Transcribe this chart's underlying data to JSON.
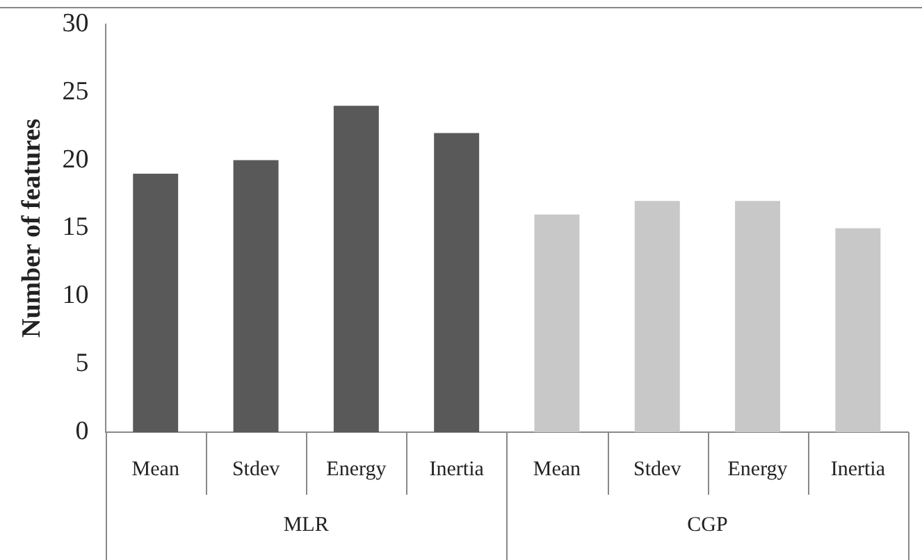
{
  "chart_data": {
    "type": "bar",
    "ylabel": "Number of features",
    "categories": [
      "Mean",
      "Stdev",
      "Energy",
      "Inertia",
      "Mean",
      "Stdev",
      "Energy",
      "Inertia"
    ],
    "values": [
      19,
      20,
      24,
      22,
      16,
      17,
      17,
      15
    ],
    "colors": [
      "#595959",
      "#595959",
      "#595959",
      "#595959",
      "#c8c8c8",
      "#c8c8c8",
      "#c8c8c8",
      "#c8c8c8"
    ],
    "annotations": [
      "MLR",
      "CGP"
    ],
    "ylim": [
      0,
      30
    ],
    "yticks": [
      0,
      5,
      10,
      15,
      20,
      25,
      30
    ],
    "grid": false,
    "legend": false
  }
}
